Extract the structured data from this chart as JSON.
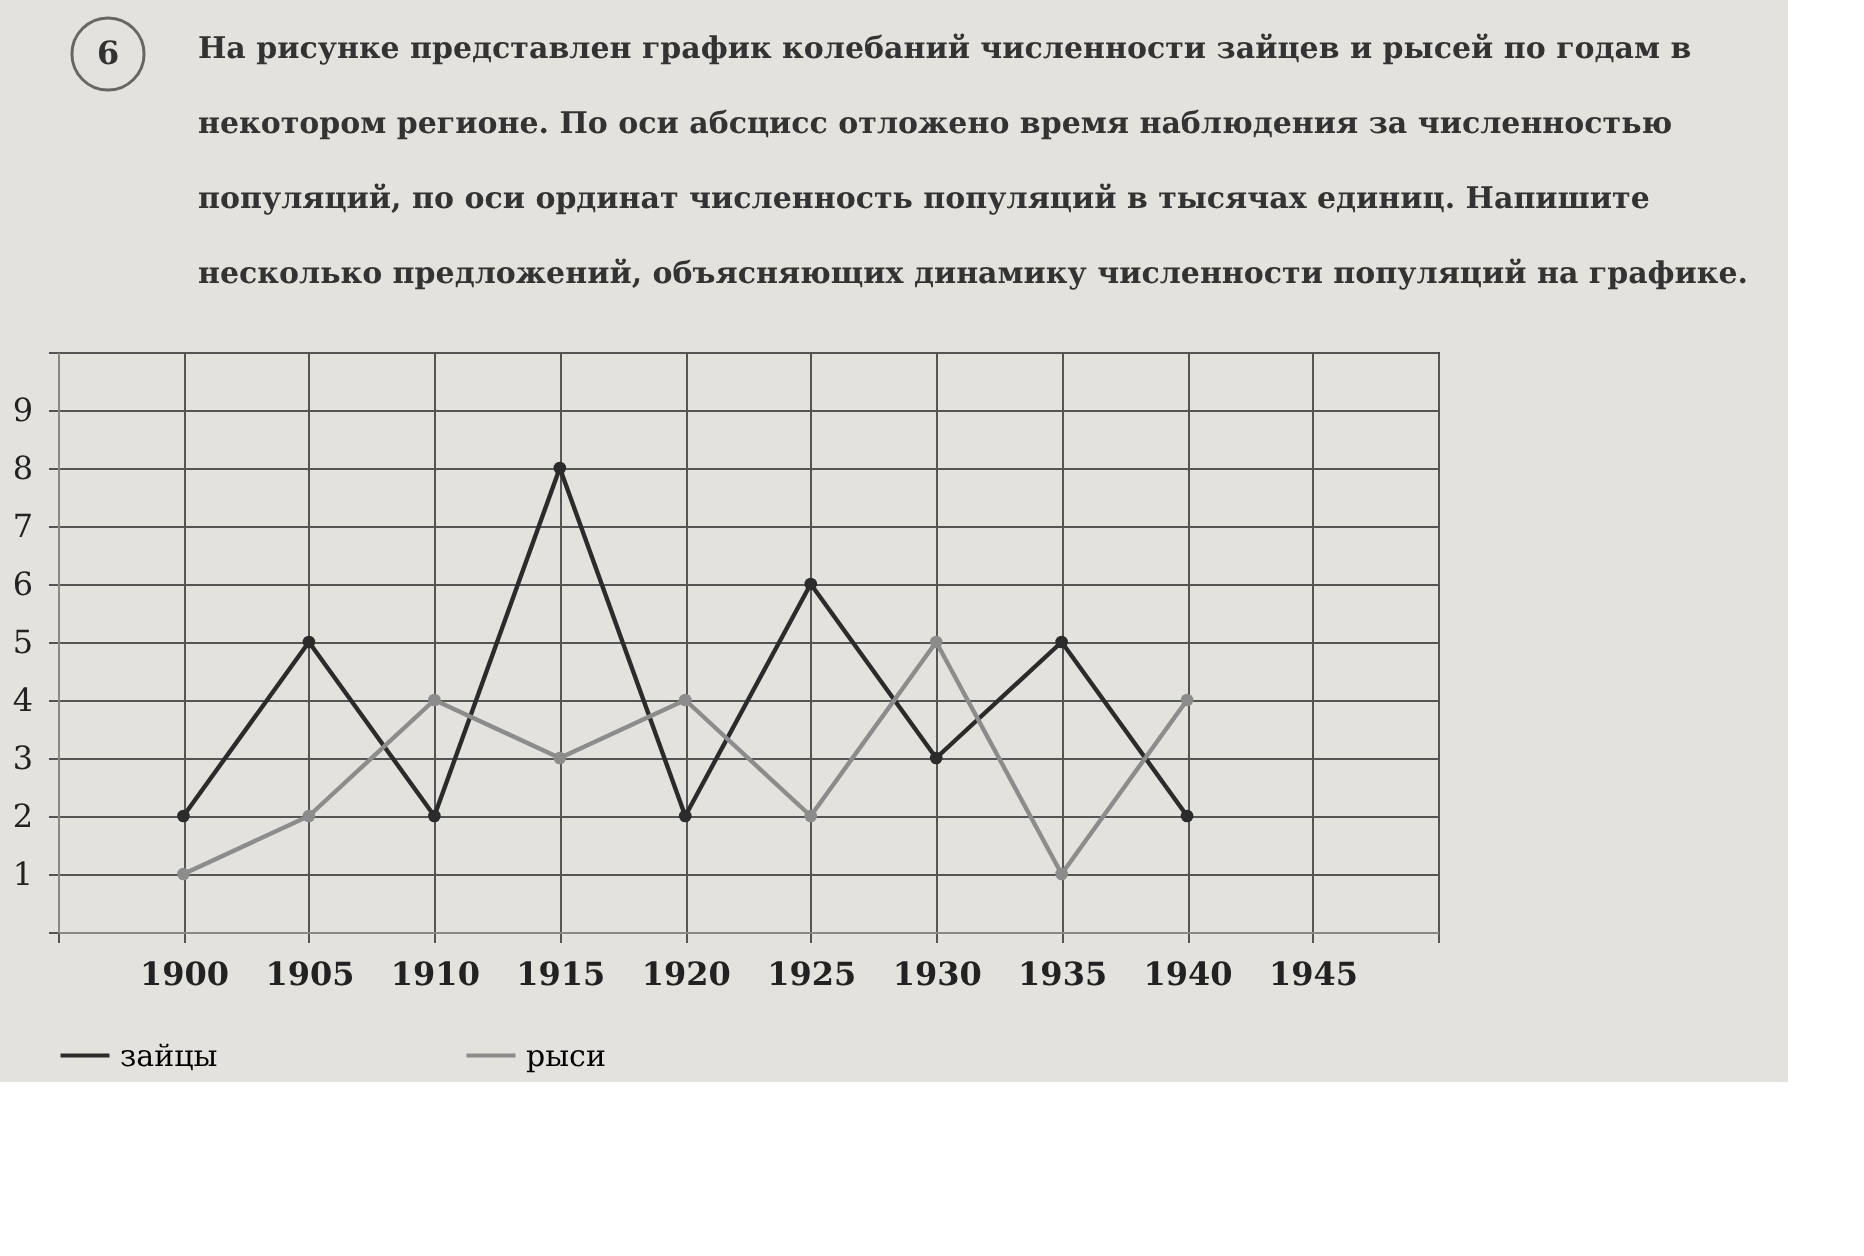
{
  "chart_data": {
    "type": "line",
    "title": "На рисунке представлен график колебаний численности зайцев и рысей по годам в некотором регионе. По оси абсцисс отложено время наблюдения за численностью популяций, по оси ординат численность популяций в тысячах единиц. Напишите несколько предложений, объясняющих динамику численности популяций на графике.",
    "annotations": [
      "6"
    ],
    "x": [
      1900,
      1905,
      1910,
      1915,
      1920,
      1925,
      1930,
      1935,
      1940
    ],
    "series": [
      {
        "name": "зайцы",
        "color": "#2b2b2b",
        "values": [
          2,
          5,
          2,
          8,
          2,
          6,
          3,
          5,
          2
        ]
      },
      {
        "name": "рыси",
        "color": "#8c8c8c",
        "values": [
          1,
          2,
          4,
          3,
          4,
          2,
          5,
          1,
          4
        ]
      }
    ],
    "xlim": [
      1895,
      1950
    ],
    "xticks": [
      {
        "value": 1895,
        "label": null
      },
      1900,
      1905,
      1910,
      1915,
      1920,
      1925,
      1930,
      1935,
      1940,
      1945,
      {
        "value": 1950,
        "label": null
      }
    ],
    "ylim": [
      0,
      10
    ],
    "yticks": [
      {
        "value": 0,
        "label": null
      },
      1,
      2,
      3,
      4,
      5,
      6,
      7,
      8,
      9,
      {
        "value": 10,
        "label": null
      }
    ],
    "grid": true,
    "legend": "bottom",
    "marker": "circle",
    "line_style": "solid"
  }
}
